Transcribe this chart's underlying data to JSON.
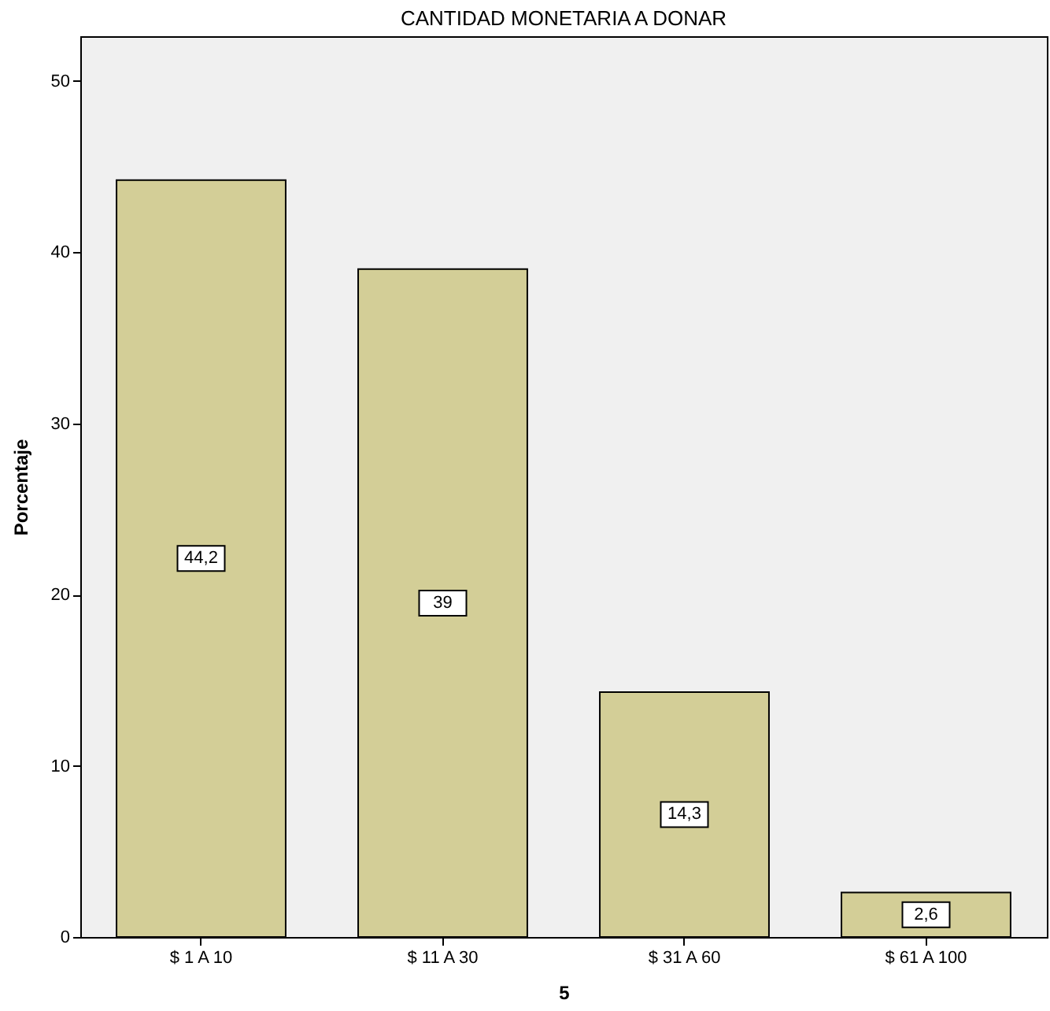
{
  "chart_data": {
    "type": "bar",
    "title": "CANTIDAD MONETARIA A DONAR",
    "xlabel": "5",
    "ylabel": "Porcentaje",
    "categories": [
      "$ 1 A 10",
      "$ 11 A 30",
      "$ 31 A 60",
      "$ 61 A 100"
    ],
    "values": [
      44.2,
      39,
      14.3,
      2.6
    ],
    "value_labels": [
      "44,2",
      "39",
      "14,3",
      "2,6"
    ],
    "color": "#d3ce97",
    "ylim": [
      0,
      52.6
    ],
    "yticks": [
      0,
      10,
      20,
      30,
      40,
      50
    ],
    "grid": false
  }
}
